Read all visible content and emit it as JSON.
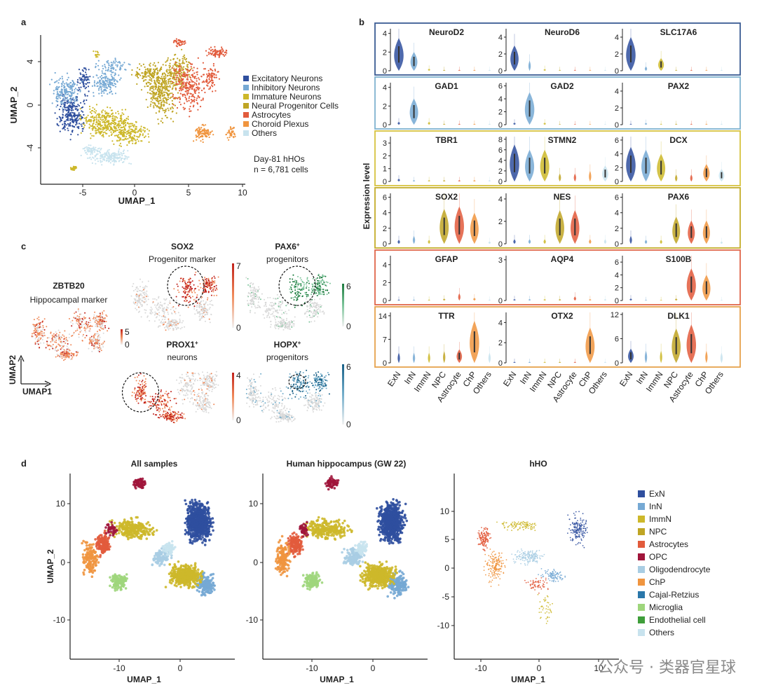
{
  "colors": {
    "ExN": "#2f4f9e",
    "InN": "#76a9d4",
    "ImmN": "#cdb82a",
    "NPC": "#bfa524",
    "Astrocytes": "#e25b3c",
    "OPC": "#a0153b",
    "Oligodendrocyte": "#a9cde3",
    "ChP": "#f0953f",
    "Cajal-Retzius": "#2a77aa",
    "Microglia": "#9ed67c",
    "Endothelial": "#3f9e3a",
    "Others": "#c8e3ee",
    "grey": "#d2d2d2"
  },
  "panel_a": {
    "letter": "a",
    "xlabel": "UMAP_1",
    "ylabel": "UMAP_2",
    "xticks": [
      "-5",
      "0",
      "5",
      "10"
    ],
    "yticks": [
      "4",
      "0",
      "-4"
    ],
    "legend": [
      {
        "label": "Excitatory Neurons",
        "key": "ExN"
      },
      {
        "label": "Inhibitory Neurons",
        "key": "InN"
      },
      {
        "label": "Immature Neurons",
        "key": "ImmN"
      },
      {
        "label": "Neural Progenitor Cells",
        "key": "NPC"
      },
      {
        "label": "Astrocytes",
        "key": "Astrocytes"
      },
      {
        "label": "Choroid Plexus",
        "key": "ChP"
      },
      {
        "label": "Others",
        "key": "Others"
      }
    ],
    "note1": "Day-81 hHOs",
    "note2": "n = 6,781 cells"
  },
  "panel_b": {
    "letter": "b",
    "ylabel": "Expression level",
    "categories": [
      "ExN",
      "InN",
      "ImmN",
      "NPC",
      "Astrocyte",
      "ChP",
      "Others"
    ],
    "rows": [
      {
        "frame": "#3b5c94",
        "genes": [
          {
            "name": "NeuroD2",
            "yticks": [
              "4",
              "2",
              "0"
            ],
            "ymax": 4.5,
            "vals": [
              3.5,
              2.0,
              0.2,
              0.1,
              0.1,
              0.1,
              0.1
            ]
          },
          {
            "name": "NeuroD6",
            "yticks": [
              "4",
              "2",
              "0"
            ],
            "ymax": 5,
            "vals": [
              3.0,
              1.2,
              0.2,
              0.1,
              0.1,
              0.1,
              0.1
            ]
          },
          {
            "name": "SLC17A6",
            "yticks": [
              "4",
              "2",
              "0"
            ],
            "ymax": 5,
            "vals": [
              4.0,
              0.5,
              1.5,
              0.1,
              0.1,
              0.1,
              0.1
            ]
          }
        ]
      },
      {
        "frame": "#7fb2cf",
        "genes": [
          {
            "name": "GAD1",
            "yticks": [
              "4",
              "2",
              "0"
            ],
            "ymax": 4.5,
            "vals": [
              0.3,
              2.8,
              0.3,
              0.1,
              0.1,
              0.1,
              0.1
            ]
          },
          {
            "name": "GAD2",
            "yticks": [
              "6",
              "4",
              "2",
              "0"
            ],
            "ymax": 6.5,
            "vals": [
              0.3,
              5.0,
              0.3,
              0.1,
              0.1,
              0.1,
              0.1
            ]
          },
          {
            "name": "PAX2",
            "yticks": [
              "4",
              "2",
              "0"
            ],
            "ymax": 5,
            "vals": [
              0.1,
              0.2,
              0.1,
              0.1,
              0.1,
              0.1,
              0.1
            ]
          }
        ]
      },
      {
        "frame": "#d6c340",
        "genes": [
          {
            "name": "TBR1",
            "yticks": [
              "3",
              "2",
              "1",
              "0"
            ],
            "ymax": 3.5,
            "vals": [
              0.2,
              0.1,
              0.1,
              0.1,
              0.1,
              0.1,
              0.1
            ]
          },
          {
            "name": "STMN2",
            "yticks": [
              "8",
              "6",
              "4",
              "2",
              "0"
            ],
            "ymax": 8.5,
            "vals": [
              7.0,
              6.0,
              6.0,
              1.5,
              1.5,
              2.0,
              3.0
            ]
          },
          {
            "name": "DCX",
            "yticks": [
              "6",
              "4",
              "2",
              "0"
            ],
            "ymax": 6.5,
            "vals": [
              5.0,
              4.6,
              4.0,
              1.0,
              1.0,
              2.5,
              1.8
            ]
          }
        ]
      },
      {
        "frame": "#c4ad2a",
        "genes": [
          {
            "name": "SOX2",
            "yticks": [
              "6",
              "4",
              "2",
              "0"
            ],
            "ymax": 6.5,
            "vals": [
              0.5,
              1.0,
              0.5,
              4.5,
              4.8,
              4.0,
              0.3
            ]
          },
          {
            "name": "NES",
            "yticks": [
              "4",
              "2",
              "0"
            ],
            "ymax": 4.5,
            "vals": [
              0.4,
              0.4,
              0.4,
              3.0,
              3.0,
              0.4,
              0.4
            ]
          },
          {
            "name": "PAX6",
            "yticks": [
              "6",
              "4",
              "2",
              "0"
            ],
            "ymax": 6.5,
            "vals": [
              1.0,
              0.5,
              0.5,
              3.5,
              3.0,
              3.0,
              0.3
            ]
          }
        ]
      },
      {
        "frame": "#e0664a",
        "genes": [
          {
            "name": "GFAP",
            "yticks": [
              "4",
              "2",
              "0"
            ],
            "ymax": 5,
            "vals": [
              0.1,
              0.1,
              0.1,
              0.2,
              0.8,
              0.3,
              0.1
            ]
          },
          {
            "name": "AQP4",
            "yticks": [
              "3",
              "0"
            ],
            "ymax": 3.3,
            "vals": [
              0.1,
              0.1,
              0.1,
              0.1,
              0.3,
              0.1,
              0.1
            ]
          },
          {
            "name": "S100B",
            "yticks": [
              "6",
              "4",
              "2",
              "0"
            ],
            "ymax": 7,
            "vals": [
              0.3,
              0.1,
              0.1,
              0.3,
              5.0,
              4.0,
              0.1
            ]
          }
        ]
      },
      {
        "frame": "#e6a24c",
        "genes": [
          {
            "name": "TTR",
            "yticks": [
              "14",
              "7",
              "0"
            ],
            "ymax": 15,
            "vals": [
              3.0,
              3.0,
              3.0,
              3.5,
              4.0,
              12.5,
              3.0
            ]
          },
          {
            "name": "OTX2",
            "yticks": [
              "4",
              "2",
              "0"
            ],
            "ymax": 5,
            "vals": [
              0.1,
              0.1,
              0.1,
              0.1,
              0.1,
              3.5,
              0.1
            ]
          },
          {
            "name": "DLK1",
            "yticks": [
              "12",
              "6",
              "0"
            ],
            "ymax": 12.5,
            "vals": [
              3.5,
              3.0,
              3.0,
              8.5,
              9.5,
              3.0,
              2.5
            ]
          }
        ]
      }
    ]
  },
  "panel_c": {
    "letter": "c",
    "axis_y": "UMAP2",
    "axis_x": "UMAP1",
    "maps": [
      {
        "gene": "ZBTB20",
        "sub": "Hippocampal marker",
        "sup": "",
        "max": "5",
        "min": "0",
        "scheme": "red"
      },
      {
        "gene": "SOX2",
        "sub": "Progenitor marker",
        "sup": "",
        "max": "7",
        "min": "0",
        "scheme": "red"
      },
      {
        "gene": "PAX6",
        "sub": "progenitors",
        "sup": "+",
        "max": "6",
        "min": "0",
        "scheme": "green"
      },
      {
        "gene": "PROX1",
        "sub": "neurons",
        "sup": "+",
        "max": "4",
        "min": "0",
        "scheme": "red"
      },
      {
        "gene": "HOPX",
        "sub": "progenitors",
        "sup": "+",
        "max": "6",
        "min": "0",
        "scheme": "blue"
      }
    ]
  },
  "panel_d": {
    "letter": "d",
    "ylabel": "UMAP_2",
    "xlabel": "UMAP_1",
    "plots": [
      {
        "title": "All samples",
        "xticks": [
          "-10",
          "0"
        ],
        "yticks": [
          "10",
          "0",
          "-10"
        ]
      },
      {
        "title": "Human hippocampus (GW 22)",
        "xticks": [
          "-10",
          "0"
        ],
        "yticks": [
          "10",
          "0",
          "-10"
        ]
      },
      {
        "title": "hHO",
        "xticks": [
          "-10",
          "0",
          "10"
        ],
        "yticks": [
          "10",
          "5",
          "0",
          "-5",
          "-10"
        ]
      }
    ],
    "legend": [
      {
        "label": "ExN",
        "key": "ExN"
      },
      {
        "label": "InN",
        "key": "InN"
      },
      {
        "label": "ImmN",
        "key": "ImmN"
      },
      {
        "label": "NPC",
        "key": "NPC"
      },
      {
        "label": "Astrocytes",
        "key": "Astrocytes"
      },
      {
        "label": "OPC",
        "key": "OPC"
      },
      {
        "label": "Oligodendrocyte",
        "key": "Oligodendrocyte"
      },
      {
        "label": "ChP",
        "key": "ChP"
      },
      {
        "label": "Cajal-Retzius",
        "key": "Cajal-Retzius"
      },
      {
        "label": "Microglia",
        "key": "Microglia"
      },
      {
        "label": "Endothelial cell",
        "key": "Endothelial"
      },
      {
        "label": "Others",
        "key": "Others"
      }
    ]
  },
  "watermark": "公众号 · 类器官星球"
}
